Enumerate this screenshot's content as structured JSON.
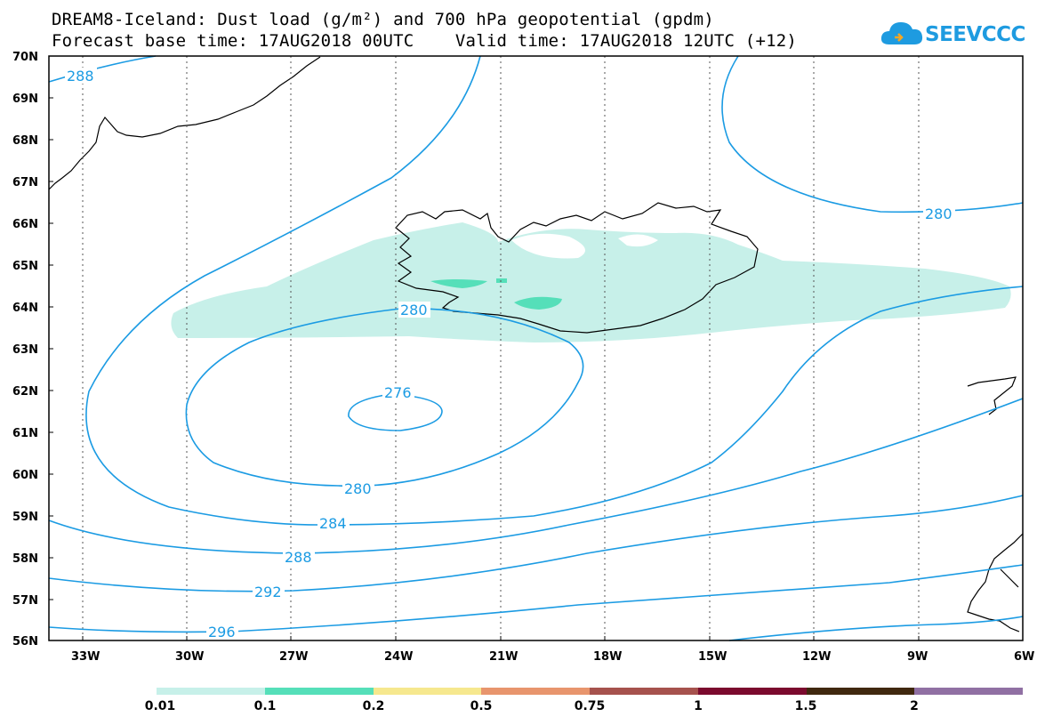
{
  "header": {
    "title_line1": "DREAM8-Iceland: Dust load (g/m²) and 700 hPa geopotential (gpdm)",
    "title_line2": "Forecast base time: 17AUG2018 00UTC    Valid time: 17AUG2018 12UTC (+12)"
  },
  "logo": {
    "text": "SEEVCCC",
    "color": "#1e9be0"
  },
  "map": {
    "region": "Iceland",
    "lat_labels": [
      "70N",
      "69N",
      "68N",
      "67N",
      "66N",
      "65N",
      "64N",
      "63N",
      "62N",
      "61N",
      "60N",
      "59N",
      "58N",
      "57N",
      "56N"
    ],
    "lon_labels": [
      "33W",
      "30W",
      "27W",
      "24W",
      "21W",
      "18W",
      "15W",
      "12W",
      "9W",
      "6W"
    ],
    "contour_color": "#1b9be3",
    "contour_labels": [
      "288",
      "280",
      "276",
      "280",
      "280",
      "284",
      "288",
      "292",
      "296"
    ],
    "dust_colors": {
      "light": "#c7f0e9",
      "medium": "#55dfb9"
    }
  },
  "colorbar": {
    "ticks": [
      "0.01",
      "0.1",
      "0.2",
      "0.5",
      "0.75",
      "1",
      "1.5",
      "2"
    ],
    "colors": [
      "#c7f0e9",
      "#55dfb9",
      "#f6e88e",
      "#e8956d",
      "#a6524d",
      "#7b0a2e",
      "#40280f",
      "#9070a3"
    ]
  }
}
